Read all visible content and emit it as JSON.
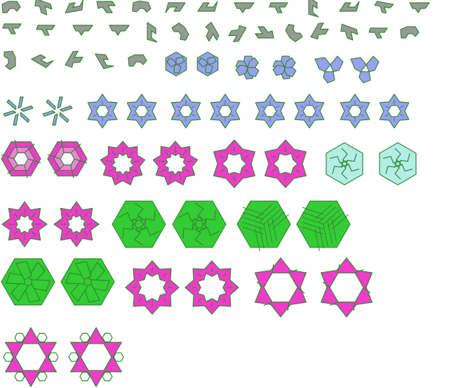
{
  "colors": {
    "outline": "#2f8a2f",
    "gray": "#999999",
    "blue": "#99a0f2",
    "magenta": "#f03cc8",
    "cyan": "#b4ece6",
    "green": "#34cc34"
  },
  "gray_pieces": [
    {
      "shape": "gray-piece-s1",
      "rot": 0
    },
    {
      "shape": "gray-piece-s2",
      "rot": 20
    },
    {
      "shape": "gray-piece-s3",
      "rot": -10
    },
    {
      "shape": "gray-piece-s2",
      "rot": 0
    },
    {
      "shape": "gray-piece-s1",
      "rot": 10
    },
    {
      "shape": "gray-piece-s3",
      "rot": 180
    },
    {
      "shape": "gray-piece-s3",
      "rot": 0
    },
    {
      "shape": "gray-piece-s4",
      "rot": 0
    },
    {
      "shape": "gray-piece-s5",
      "rot": 0
    },
    {
      "shape": "gray-piece-s3",
      "rot": 90
    },
    {
      "shape": "gray-piece-s3",
      "rot": 0
    },
    {
      "shape": "gray-piece-s5",
      "rot": 10
    },
    {
      "shape": "gray-piece-s4",
      "rot": 0
    },
    {
      "shape": "gray-piece-s5",
      "rot": 0
    },
    {
      "shape": "gray-piece-s5",
      "rot": 0
    },
    {
      "shape": "gray-piece-s4",
      "rot": 0
    },
    {
      "shape": "gray-piece-s4",
      "rot": 0
    },
    {
      "shape": "gray-piece-s3",
      "rot": 90
    },
    {
      "shape": "gray-piece-s1",
      "rot": 60
    },
    {
      "shape": "gray-piece-s2",
      "rot": 60
    },
    {
      "shape": "gray-piece-s2",
      "rot": 120
    },
    {
      "shape": "gray-piece-s2",
      "rot": 180
    },
    {
      "shape": "gray-piece-s1",
      "rot": 240
    },
    {
      "shape": "gray-piece-s2",
      "rot": 300
    },
    {
      "shape": "gray-piece-s2",
      "rot": 20
    },
    {
      "shape": "gray-piece-s5",
      "rot": 0
    },
    {
      "shape": "gray-piece-s1",
      "rot": 0
    },
    {
      "shape": "gray-piece-s1",
      "rot": 90
    },
    {
      "shape": "gray-piece-s3",
      "rot": 30
    },
    {
      "shape": "gray-piece-s2",
      "rot": 300
    },
    {
      "shape": "gray-piece-s3",
      "rot": 60
    },
    {
      "shape": "gray-piece-s1",
      "rot": 0
    }
  ],
  "tilings": [
    {
      "type": "blue-hex-tiling"
    },
    {
      "type": "blue-hex-tiling"
    },
    {
      "type": "blue-pinwheel-tiling"
    },
    {
      "type": "blue-pinwheel-tiling"
    },
    {
      "type": "blue-propeller-tiling"
    },
    {
      "type": "blue-propeller-tiling"
    },
    {
      "type": "blue-tristar-tiling"
    },
    {
      "type": "blue-tristar-tiling"
    },
    {
      "type": "blue-hexring-tiling"
    },
    {
      "type": "blue-hexring-tiling"
    },
    {
      "type": "blue-hexring-tiling"
    },
    {
      "type": "blue-hexring-tiling"
    },
    {
      "type": "blue-hexring-tiling"
    },
    {
      "type": "blue-hexring-tiling"
    },
    {
      "type": "blue-hexring-tiling"
    },
    {
      "type": "blue-hexring-tiling"
    },
    {
      "type": "magenta-spiral-hexagon"
    },
    {
      "type": "magenta-spiral-hexagon"
    },
    {
      "type": "magenta-jagged-ring"
    },
    {
      "type": "magenta-jagged-ring"
    },
    {
      "type": "magenta-star-ring"
    },
    {
      "type": "magenta-star-ring"
    },
    {
      "type": "cyan-maze-hexagon"
    },
    {
      "type": "cyan-maze-hexagon"
    },
    {
      "type": "magenta-small-ring"
    },
    {
      "type": "magenta-small-ring"
    },
    {
      "type": "green-maze-hexagon"
    },
    {
      "type": "green-maze-hexagon"
    },
    {
      "type": "green-cube-hexagon"
    },
    {
      "type": "green-cube-hexagon"
    },
    {
      "type": "green-weave-hexagon"
    },
    {
      "type": "green-weave-hexagon"
    },
    {
      "type": "magenta-octagram-ring"
    },
    {
      "type": "magenta-octagram-ring"
    },
    {
      "type": "magenta-hexagram-frame"
    },
    {
      "type": "magenta-hexagram-frame"
    },
    {
      "type": "magenta-flower-frame"
    },
    {
      "type": "magenta-flower-frame"
    }
  ]
}
